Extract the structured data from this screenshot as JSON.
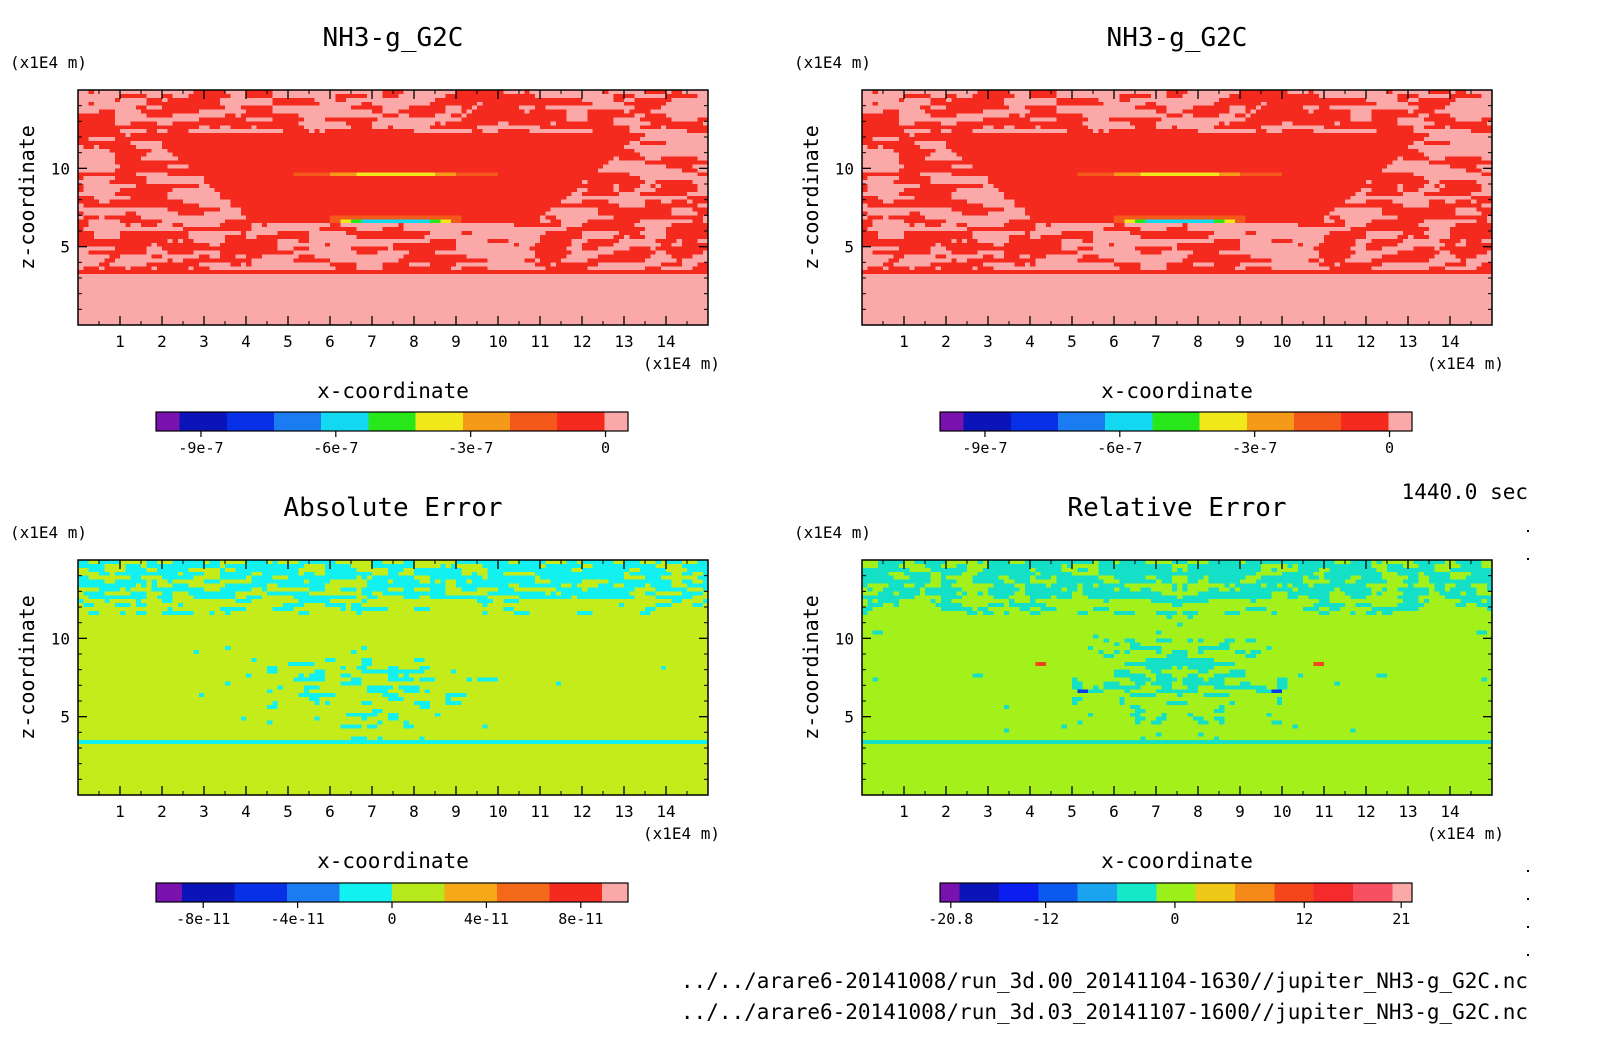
{
  "chart_data": [
    {
      "type": "heatmap",
      "title": "NH3-g_G2C",
      "xlabel": "x-coordinate",
      "ylabel": "z-coordinate",
      "x_unit": "(x1E4 m)",
      "y_unit": "(x1E4 m)",
      "xlim": [
        0,
        15
      ],
      "ylim": [
        0,
        15
      ],
      "xticks": [
        1,
        2,
        3,
        4,
        5,
        6,
        7,
        8,
        9,
        10,
        11,
        12,
        13,
        14
      ],
      "yticks": [
        5,
        10
      ],
      "pattern": "field",
      "colorbar": {
        "colors": [
          "#7a12b0",
          "#0a14b8",
          "#0830e6",
          "#1a7cf0",
          "#12d8f0",
          "#28e81c",
          "#f0e81a",
          "#f59a18",
          "#f4581a",
          "#f52a1e",
          "#fba8a8"
        ],
        "ticks": [
          {
            "label": "-9e-7",
            "value": -9e-07
          },
          {
            "label": "-6e-7",
            "value": -6e-07
          },
          {
            "label": "-3e-7",
            "value": -3e-07
          },
          {
            "label": "0",
            "value": 0
          }
        ],
        "range": [
          -1e-06,
          5e-08
        ]
      }
    },
    {
      "type": "heatmap",
      "title": "NH3-g_G2C",
      "xlabel": "x-coordinate",
      "ylabel": "z-coordinate",
      "x_unit": "(x1E4 m)",
      "y_unit": "(x1E4 m)",
      "xlim": [
        0,
        15
      ],
      "ylim": [
        0,
        15
      ],
      "xticks": [
        1,
        2,
        3,
        4,
        5,
        6,
        7,
        8,
        9,
        10,
        11,
        12,
        13,
        14
      ],
      "yticks": [
        5,
        10
      ],
      "pattern": "field",
      "colorbar": {
        "colors": [
          "#7a12b0",
          "#0a14b8",
          "#0830e6",
          "#1a7cf0",
          "#12d8f0",
          "#28e81c",
          "#f0e81a",
          "#f59a18",
          "#f4581a",
          "#f52a1e",
          "#fba8a8"
        ],
        "ticks": [
          {
            "label": "-9e-7",
            "value": -9e-07
          },
          {
            "label": "-6e-7",
            "value": -6e-07
          },
          {
            "label": "-3e-7",
            "value": -3e-07
          },
          {
            "label": "0",
            "value": 0
          }
        ],
        "range": [
          -1e-06,
          5e-08
        ]
      }
    },
    {
      "type": "heatmap",
      "title": "Absolute Error",
      "xlabel": "x-coordinate",
      "ylabel": "z-coordinate",
      "x_unit": "(x1E4 m)",
      "y_unit": "(x1E4 m)",
      "xlim": [
        0,
        15
      ],
      "ylim": [
        0,
        15
      ],
      "xticks": [
        1,
        2,
        3,
        4,
        5,
        6,
        7,
        8,
        9,
        10,
        11,
        12,
        13,
        14
      ],
      "yticks": [
        5,
        10
      ],
      "pattern": "abs",
      "colorbar": {
        "colors": [
          "#7a12b0",
          "#0a14b8",
          "#0830e6",
          "#1a7cf0",
          "#12f0f0",
          "#b6e81c",
          "#f5a818",
          "#f4681a",
          "#f52a1e",
          "#fba8a8"
        ],
        "ticks": [
          {
            "label": "-8e-11",
            "value": -8e-11
          },
          {
            "label": "-4e-11",
            "value": -4e-11
          },
          {
            "label": "0",
            "value": 0
          },
          {
            "label": "4e-11",
            "value": 4e-11
          },
          {
            "label": "8e-11",
            "value": 8e-11
          }
        ],
        "range": [
          -1e-10,
          1e-10
        ]
      }
    },
    {
      "type": "heatmap",
      "title": "Relative Error",
      "xlabel": "x-coordinate",
      "ylabel": "z-coordinate",
      "x_unit": "(x1E4 m)",
      "y_unit": "(x1E4 m)",
      "xlim": [
        0,
        15
      ],
      "ylim": [
        0,
        15
      ],
      "xticks": [
        1,
        2,
        3,
        4,
        5,
        6,
        7,
        8,
        9,
        10,
        11,
        12,
        13,
        14
      ],
      "yticks": [
        5,
        10
      ],
      "pattern": "rel",
      "colorbar": {
        "colors": [
          "#7a12b0",
          "#0a14b8",
          "#0a1ef0",
          "#0a5af0",
          "#1aa4f0",
          "#14e8c8",
          "#9cf01a",
          "#f0c818",
          "#f58a18",
          "#f4461a",
          "#f52a2a",
          "#f85060",
          "#fba8a8"
        ],
        "ticks": [
          {
            "label": "-20.8",
            "value": -20.8
          },
          {
            "label": "-12",
            "value": -12
          },
          {
            "label": "0",
            "value": 0
          },
          {
            "label": "12",
            "value": 12
          },
          {
            "label": "21",
            "value": 21
          }
        ],
        "range": [
          -21.8,
          22.0
        ]
      }
    }
  ],
  "time_label": "1440.0 sec",
  "file_paths": [
    "../../arare6-20141008/run_3d.00_20141104-1630//jupiter_NH3-g_G2C.nc",
    "../../arare6-20141008/run_3d.03_20141107-1600//jupiter_NH3-g_G2C.nc"
  ]
}
